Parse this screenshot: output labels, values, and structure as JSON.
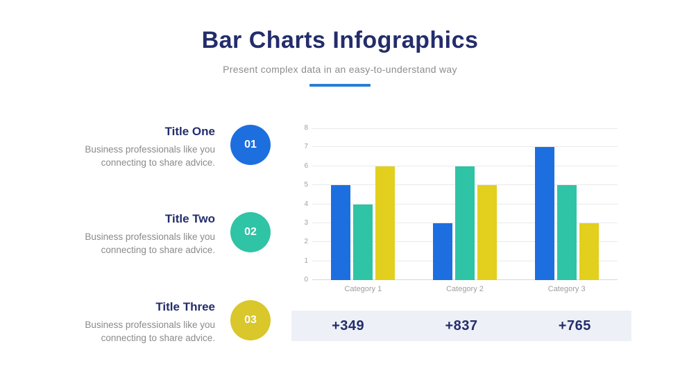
{
  "header": {
    "title": "Bar Charts Infographics",
    "subtitle": "Present complex data in an easy-to-understand way",
    "accent_color": "#2b7cd6"
  },
  "items": [
    {
      "title": "Title One",
      "description": "Business professionals like you connecting to share advice.",
      "number": "01",
      "color": "#1d6fe0"
    },
    {
      "title": "Title Two",
      "description": "Business professionals like you connecting to share advice.",
      "number": "02",
      "color": "#2ec4a5"
    },
    {
      "title": "Title Three",
      "description": "Business professionals like you connecting to share advice.",
      "number": "03",
      "color": "#d9c72b"
    }
  ],
  "chart_data": {
    "type": "bar",
    "categories": [
      "Category 1",
      "Category 2",
      "Category 3"
    ],
    "series": [
      {
        "color": "#1d6fe0",
        "values": [
          5,
          3,
          7
        ]
      },
      {
        "color": "#2ec4a5",
        "values": [
          4,
          6,
          5
        ]
      },
      {
        "color": "#e3cf1d",
        "values": [
          6,
          5,
          3
        ]
      }
    ],
    "ylim": [
      0,
      8
    ],
    "yticks": [
      0,
      1,
      2,
      3,
      4,
      5,
      6,
      7,
      8
    ],
    "grid": true,
    "legend": "none",
    "title": "",
    "xlabel": "",
    "ylabel": ""
  },
  "summary": {
    "values": [
      "+349",
      "+837",
      "+765"
    ],
    "background": "#edf0f6",
    "text_color": "#232d6b"
  }
}
